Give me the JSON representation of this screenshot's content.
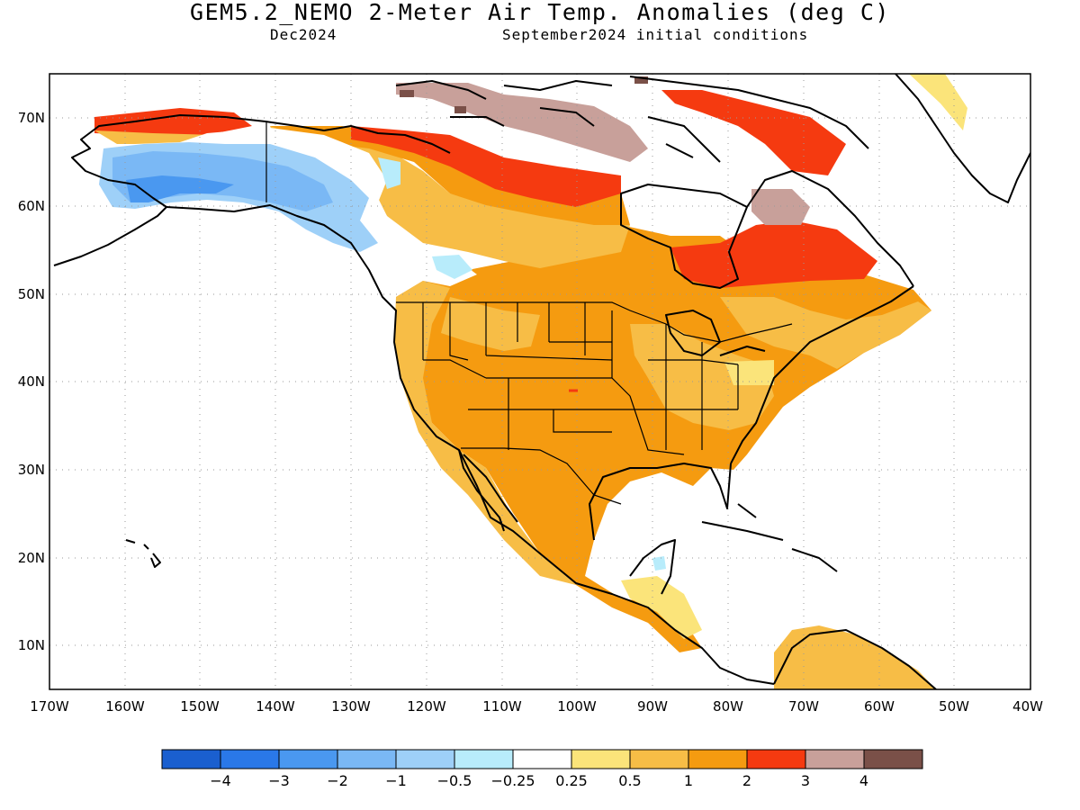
{
  "header": {
    "title": "GEM5.2_NEMO 2-Meter Air Temp. Anomalies (deg C)",
    "valid_month": "Dec2024",
    "init_conditions": "September2024 initial conditions"
  },
  "map": {
    "lon_range": [
      -170,
      -40
    ],
    "lat_range": [
      5,
      75
    ],
    "x_ticks": [
      "170W",
      "160W",
      "150W",
      "140W",
      "130W",
      "120W",
      "110W",
      "100W",
      "90W",
      "80W",
      "70W",
      "60W",
      "50W",
      "40W"
    ],
    "y_ticks": [
      "10N",
      "20N",
      "30N",
      "40N",
      "50N",
      "60N",
      "70N"
    ],
    "gridlines": true
  },
  "colorbar": {
    "colors": [
      "#1a5fcf",
      "#2a78e8",
      "#4a98f0",
      "#7ab8f5",
      "#9ed0f8",
      "#b8ecfb",
      "#ffffff",
      "#fbe47a",
      "#f7bd46",
      "#f59b10",
      "#f53a10",
      "#c8a09a",
      "#7a5048"
    ],
    "labels": [
      "−4",
      "−3",
      "−2",
      "−1",
      "−0.5",
      "−0.25",
      "0.25",
      "0.5",
      "1",
      "2",
      "3",
      "4"
    ]
  }
}
